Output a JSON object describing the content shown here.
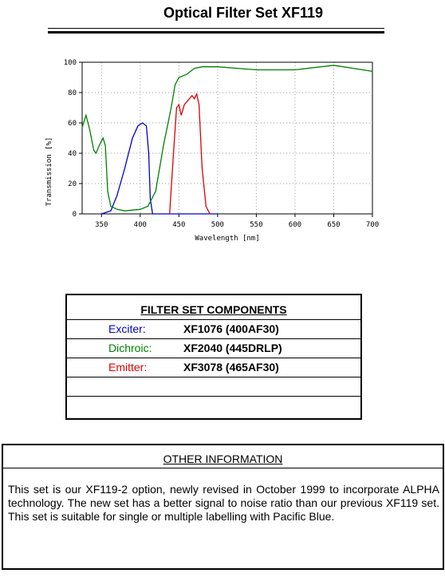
{
  "header": {
    "title": "Optical Filter Set XF119"
  },
  "chart_data": {
    "type": "line",
    "x_label": "Wavelength [nm]",
    "y_label": "Transmission [%]",
    "xlim": [
      325,
      700
    ],
    "ylim": [
      0,
      100
    ],
    "xticks": [
      350,
      400,
      450,
      500,
      550,
      600,
      650,
      700
    ],
    "yticks": [
      0,
      20,
      40,
      60,
      80,
      100
    ],
    "grid": true,
    "series": [
      {
        "name": "Exciter:",
        "color": "#0000cc",
        "x": [
          350,
          362,
          370,
          380,
          390,
          397,
          403,
          408,
          411,
          413,
          416,
          500
        ],
        "values": [
          0,
          2,
          12,
          30,
          50,
          58,
          60,
          58,
          40,
          10,
          0,
          0
        ]
      },
      {
        "name": "Dichroic:",
        "color": "#008000",
        "x": [
          325,
          330,
          335,
          340,
          343,
          347,
          352,
          355,
          358,
          362,
          370,
          380,
          400,
          410,
          420,
          430,
          440,
          445,
          450,
          460,
          470,
          480,
          500,
          550,
          600,
          650,
          700
        ],
        "values": [
          57,
          65,
          55,
          42,
          40,
          45,
          50,
          45,
          15,
          5,
          3,
          2,
          3,
          5,
          15,
          45,
          70,
          85,
          90,
          92,
          96,
          97,
          97,
          95,
          95,
          98,
          94
        ]
      },
      {
        "name": "Emitter:",
        "color": "#dd0000",
        "x": [
          438,
          443,
          447,
          450,
          453,
          457,
          462,
          467,
          470,
          473,
          476,
          480,
          485,
          490
        ],
        "values": [
          0,
          40,
          70,
          72,
          65,
          72,
          75,
          78,
          76,
          79,
          72,
          30,
          5,
          0
        ]
      }
    ]
  },
  "components": {
    "title": "FILTER SET COMPONENTS",
    "rows": [
      "XF1076 (400AF30)",
      "XF2040 (445DRLP)",
      "XF3078 (465AF30)"
    ]
  },
  "info": {
    "title": "OTHER INFORMATION",
    "text": "This set is our XF119-2 option, newly revised in October 1999 to incorporate ALPHA technology. The new set has a better signal to noise ratio than our previous XF119 set. This set is suitable for single or multiple labelling with Pacific Blue."
  }
}
